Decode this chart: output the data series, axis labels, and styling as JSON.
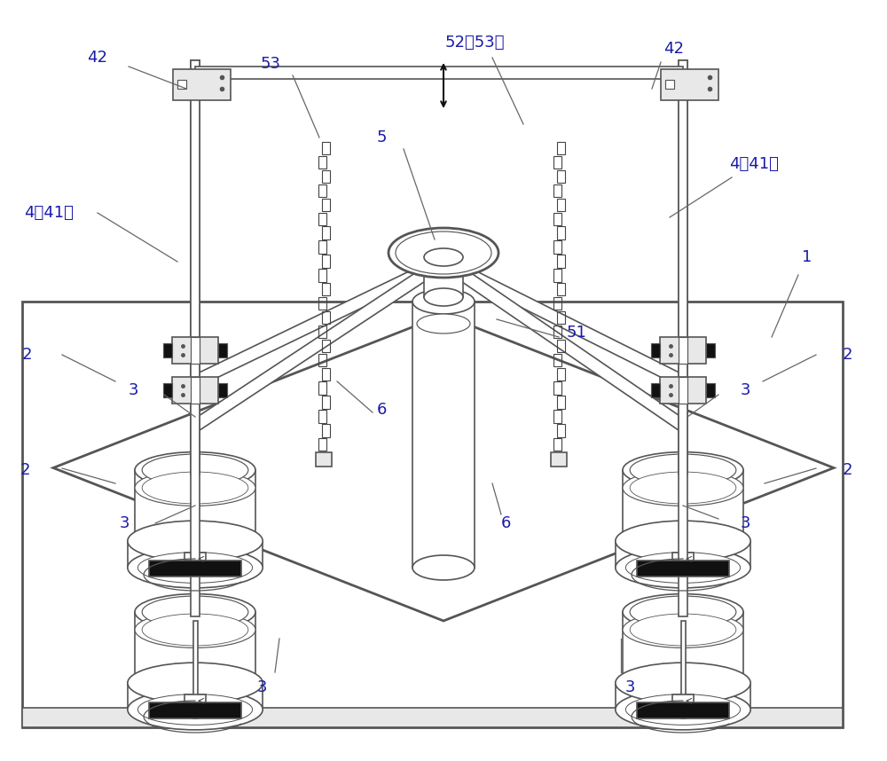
{
  "figsize": [
    10.0,
    8.58
  ],
  "dpi": 100,
  "lc": "#555555",
  "lc_dark": "#222222",
  "lc_label": "#1a1aaa",
  "lw": 1.2,
  "lw_thick": 2.0,
  "bg": "white",
  "gray_light": "#e8e8e8",
  "gray_mid": "#cccccc",
  "black": "#111111"
}
